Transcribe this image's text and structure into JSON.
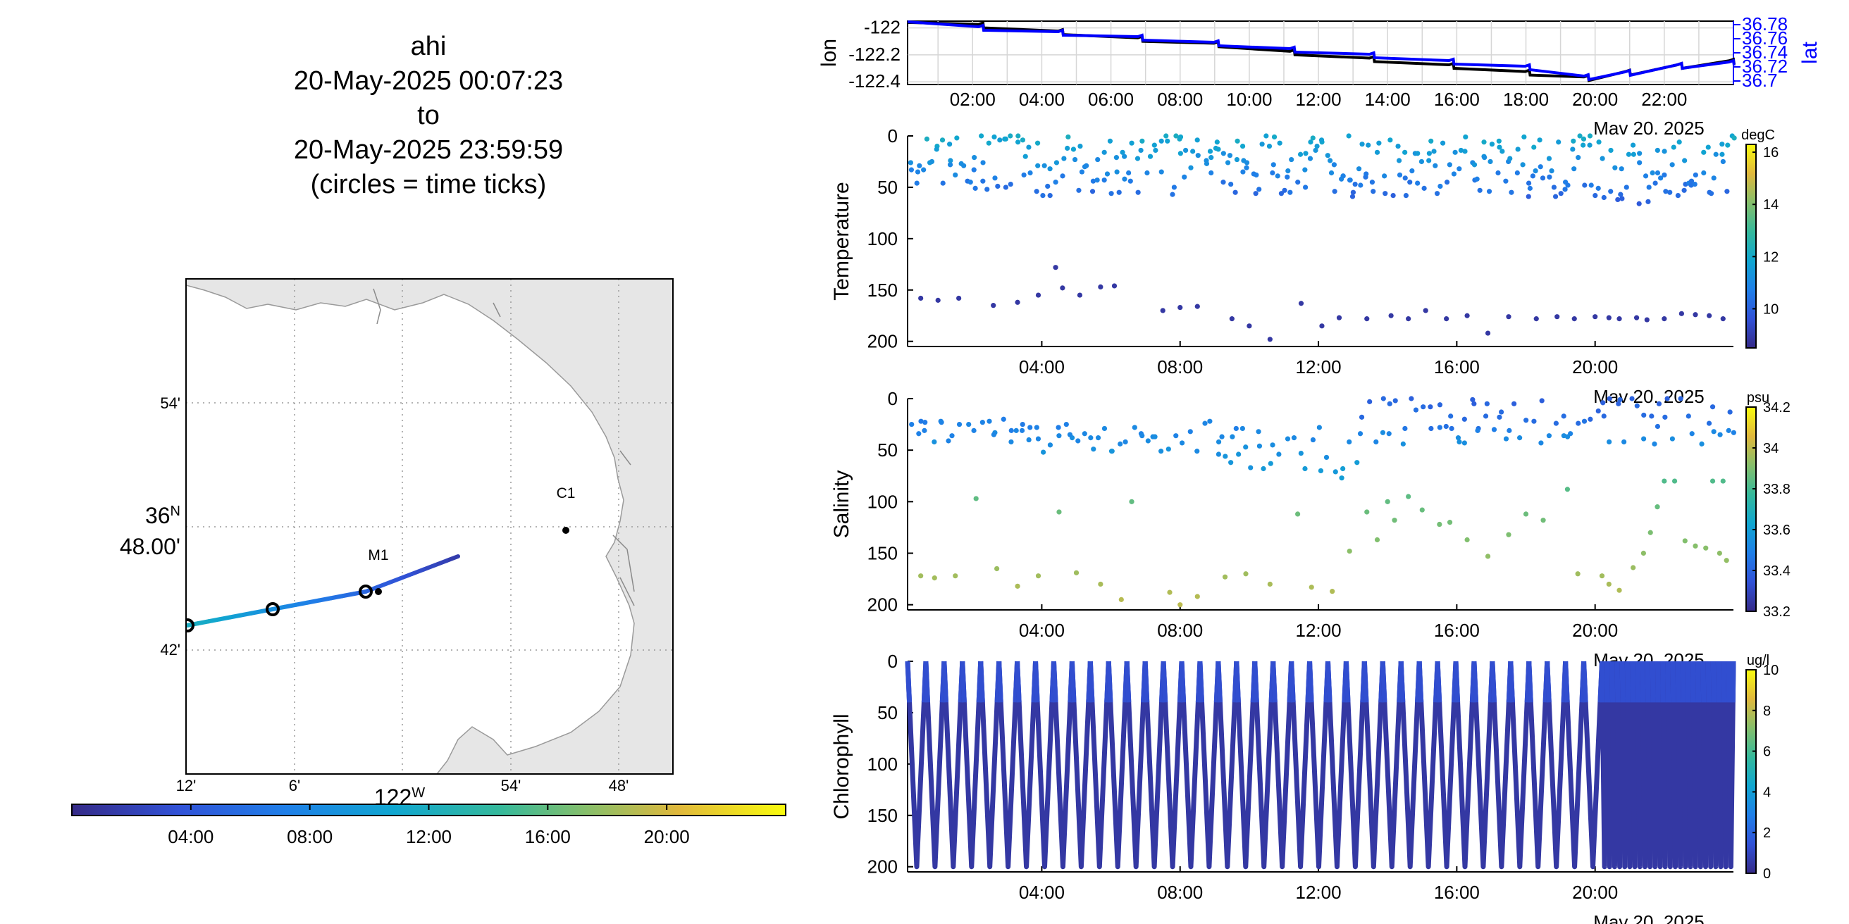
{
  "title": {
    "lines": [
      "ahi",
      "20-May-2025 00:07:23",
      "to",
      "20-May-2025 23:59:59",
      "(circles = time ticks)"
    ]
  },
  "map": {
    "lat_tick_labels": [
      "54'",
      "42'"
    ],
    "lat_center_label": "36",
    "lat_center_suffix": "N",
    "lat_center_minutes": "48.00'",
    "lon_tick_labels": [
      "12'",
      "6'",
      "54'",
      "48'"
    ],
    "lon_center_label": "122",
    "lon_center_suffix": "W",
    "moorings": [
      {
        "name": "C1"
      },
      {
        "name": "M1"
      }
    ],
    "time_colorbar_ticks": [
      "04:00",
      "08:00",
      "12:00",
      "16:00",
      "20:00"
    ],
    "colors": {
      "land": "#e6e6e6",
      "coast": "#9a9a9a",
      "grid": "#9a9a9a"
    }
  },
  "date_label": "Mav 20. 2025",
  "date_label_clipped": "Mav 20. 2025",
  "chart_data": [
    {
      "id": "position",
      "type": "line",
      "left_ylabel": "lon",
      "right_ylabel": "lat",
      "x_ticks": [
        "02:00",
        "04:00",
        "06:00",
        "08:00",
        "10:00",
        "12:00",
        "14:00",
        "16:00",
        "18:00",
        "20:00",
        "22:00"
      ],
      "xlim_hours": [
        0.12,
        24.0
      ],
      "left_ticks": [
        "-122",
        "-122.2",
        "-122.4"
      ],
      "left_ylim": [
        -122.42,
        -121.95
      ],
      "right_ticks": [
        "36.78",
        "36.76",
        "36.74",
        "36.72",
        "36.7"
      ],
      "right_ylim": [
        36.695,
        36.785
      ],
      "series": [
        {
          "name": "lon",
          "color": "#000000",
          "x": [
            0.12,
            2.3,
            4.6,
            6.9,
            9.1,
            11.3,
            13.6,
            15.9,
            18.1,
            19.8,
            21.0,
            22.5,
            24.0
          ],
          "y": [
            -121.96,
            -122.0,
            -122.05,
            -122.1,
            -122.14,
            -122.2,
            -122.25,
            -122.3,
            -122.35,
            -122.39,
            -122.35,
            -122.3,
            -122.27
          ]
        },
        {
          "name": "lat",
          "color": "#0000ff",
          "x": [
            0.12,
            2.3,
            4.6,
            6.9,
            9.1,
            11.3,
            13.6,
            15.9,
            18.1,
            19.8,
            21.0,
            22.5,
            24.0
          ],
          "y": [
            36.784,
            36.772,
            36.765,
            36.758,
            36.75,
            36.741,
            36.733,
            36.724,
            36.716,
            36.702,
            36.708,
            36.718,
            36.722
          ]
        }
      ]
    },
    {
      "id": "temperature",
      "type": "scatter",
      "ylabel": "Temperature",
      "units": "degC",
      "y_ticks": [
        "0",
        "50",
        "100",
        "150",
        "200"
      ],
      "ylim": [
        0,
        205
      ],
      "y_reversed": true,
      "x_ticks": [
        "04:00",
        "08:00",
        "12:00",
        "16:00",
        "20:00"
      ],
      "xlim_hours": [
        0.12,
        24.0
      ],
      "colorbar_ticks": [
        "16",
        "14",
        "12",
        "10"
      ],
      "clim": [
        8.5,
        16.3
      ],
      "points_shallow_depths": [
        0,
        10,
        20,
        30,
        40,
        50,
        60
      ],
      "deep_points": [
        [
          0.5,
          158
        ],
        [
          1.0,
          160
        ],
        [
          1.6,
          158
        ],
        [
          2.6,
          165
        ],
        [
          3.3,
          162
        ],
        [
          3.9,
          155
        ],
        [
          4.4,
          128
        ],
        [
          4.6,
          148
        ],
        [
          5.1,
          155
        ],
        [
          5.7,
          147
        ],
        [
          6.1,
          146
        ],
        [
          7.5,
          170
        ],
        [
          8.0,
          167
        ],
        [
          8.5,
          166
        ],
        [
          9.5,
          178
        ],
        [
          10.0,
          185
        ],
        [
          10.6,
          198
        ],
        [
          11.5,
          163
        ],
        [
          12.1,
          185
        ],
        [
          12.6,
          177
        ],
        [
          13.4,
          178
        ],
        [
          14.1,
          175
        ],
        [
          14.6,
          178
        ],
        [
          15.1,
          170
        ],
        [
          15.7,
          178
        ],
        [
          16.3,
          175
        ],
        [
          16.9,
          192
        ],
        [
          17.5,
          176
        ],
        [
          18.3,
          178
        ],
        [
          18.9,
          176
        ],
        [
          19.4,
          178
        ],
        [
          20.0,
          176
        ],
        [
          20.4,
          177
        ],
        [
          20.7,
          178
        ],
        [
          21.2,
          177
        ],
        [
          21.5,
          179
        ],
        [
          22.0,
          178
        ],
        [
          22.5,
          173
        ],
        [
          22.9,
          174
        ],
        [
          23.3,
          175
        ],
        [
          23.7,
          178
        ]
      ]
    },
    {
      "id": "salinity",
      "type": "scatter",
      "ylabel": "Salinity",
      "units": "psu",
      "y_ticks": [
        "0",
        "50",
        "100",
        "150",
        "200"
      ],
      "ylim": [
        0,
        205
      ],
      "y_reversed": true,
      "x_ticks": [
        "04:00",
        "08:00",
        "12:00",
        "16:00",
        "20:00"
      ],
      "xlim_hours": [
        0.12,
        24.0
      ],
      "colorbar_ticks": [
        "34.2",
        "34",
        "33.8",
        "33.6",
        "33.4",
        "33.2"
      ],
      "clim": [
        33.2,
        34.2
      ],
      "deep_points": [
        [
          0.5,
          172
        ],
        [
          0.9,
          174
        ],
        [
          1.5,
          172
        ],
        [
          2.1,
          97
        ],
        [
          2.7,
          165
        ],
        [
          3.3,
          182
        ],
        [
          3.9,
          172
        ],
        [
          4.5,
          110
        ],
        [
          5.0,
          169
        ],
        [
          5.7,
          180
        ],
        [
          6.3,
          195
        ],
        [
          6.6,
          100
        ],
        [
          7.7,
          188
        ],
        [
          8.0,
          200
        ],
        [
          8.5,
          192
        ],
        [
          9.3,
          173
        ],
        [
          9.9,
          170
        ],
        [
          10.6,
          180
        ],
        [
          11.4,
          112
        ],
        [
          11.8,
          183
        ],
        [
          12.4,
          187
        ],
        [
          12.9,
          148
        ],
        [
          13.4,
          110
        ],
        [
          13.7,
          137
        ],
        [
          14.0,
          100
        ],
        [
          14.2,
          118
        ],
        [
          14.6,
          95
        ],
        [
          15.0,
          108
        ],
        [
          15.5,
          122
        ],
        [
          15.8,
          120
        ],
        [
          16.3,
          137
        ],
        [
          16.9,
          153
        ],
        [
          17.5,
          132
        ],
        [
          18.0,
          112
        ],
        [
          18.5,
          118
        ],
        [
          19.2,
          88
        ],
        [
          19.5,
          170
        ],
        [
          20.2,
          172
        ],
        [
          20.4,
          180
        ],
        [
          20.7,
          186
        ],
        [
          21.1,
          164
        ],
        [
          21.4,
          150
        ],
        [
          21.6,
          130
        ],
        [
          21.8,
          105
        ],
        [
          22.0,
          80
        ],
        [
          22.3,
          80
        ],
        [
          22.6,
          138
        ],
        [
          22.9,
          143
        ],
        [
          23.2,
          145
        ],
        [
          23.6,
          150
        ],
        [
          23.8,
          157
        ],
        [
          23.4,
          80
        ],
        [
          23.7,
          80
        ]
      ]
    },
    {
      "id": "chlorophyll",
      "type": "line",
      "ylabel": "Chlorophyll",
      "units": "ug/l",
      "y_ticks": [
        "0",
        "50",
        "100",
        "150",
        "200"
      ],
      "ylim": [
        0,
        205
      ],
      "y_reversed": true,
      "x_ticks": [
        "04:00",
        "08:00",
        "12:00",
        "16:00",
        "20:00"
      ],
      "xlim_hours": [
        0.12,
        24.0
      ],
      "colorbar_ticks": [
        "10",
        "8",
        "6",
        "4",
        "2",
        "0"
      ],
      "clim": [
        0,
        10
      ],
      "profile_depth_max": 200,
      "profiles_before_20h": 38,
      "profiles_after_20h": 26
    }
  ]
}
